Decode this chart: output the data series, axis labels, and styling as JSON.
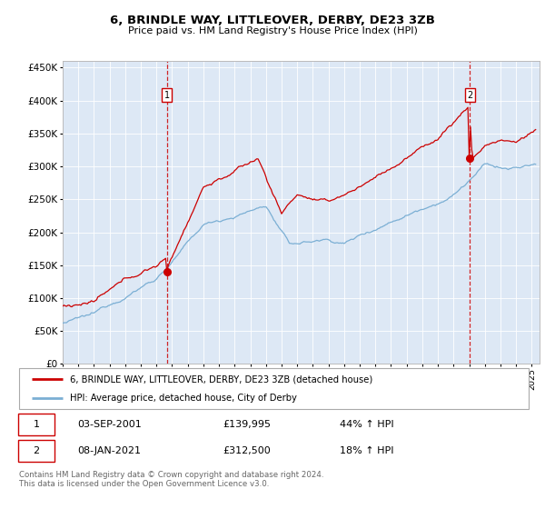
{
  "title": "6, BRINDLE WAY, LITTLEOVER, DERBY, DE23 3ZB",
  "subtitle": "Price paid vs. HM Land Registry's House Price Index (HPI)",
  "legend_line1": "6, BRINDLE WAY, LITTLEOVER, DERBY, DE23 3ZB (detached house)",
  "legend_line2": "HPI: Average price, detached house, City of Derby",
  "footnote": "Contains HM Land Registry data © Crown copyright and database right 2024.\nThis data is licensed under the Open Government Licence v3.0.",
  "sale1_date": "03-SEP-2001",
  "sale1_price": 139995,
  "sale1_t": 2001.67,
  "sale1_label": "1",
  "sale1_pct": "44% ↑ HPI",
  "sale2_date": "08-JAN-2021",
  "sale2_price": 312500,
  "sale2_t": 2021.03,
  "sale2_label": "2",
  "sale2_pct": "18% ↑ HPI",
  "property_color": "#cc0000",
  "hpi_color": "#7bafd4",
  "background_color": "#dde8f5",
  "ylim": [
    0,
    460000
  ],
  "yticks": [
    0,
    50000,
    100000,
    150000,
    200000,
    250000,
    300000,
    350000,
    400000,
    450000
  ],
  "xlim_start": 1995.0,
  "xlim_end": 2025.5
}
